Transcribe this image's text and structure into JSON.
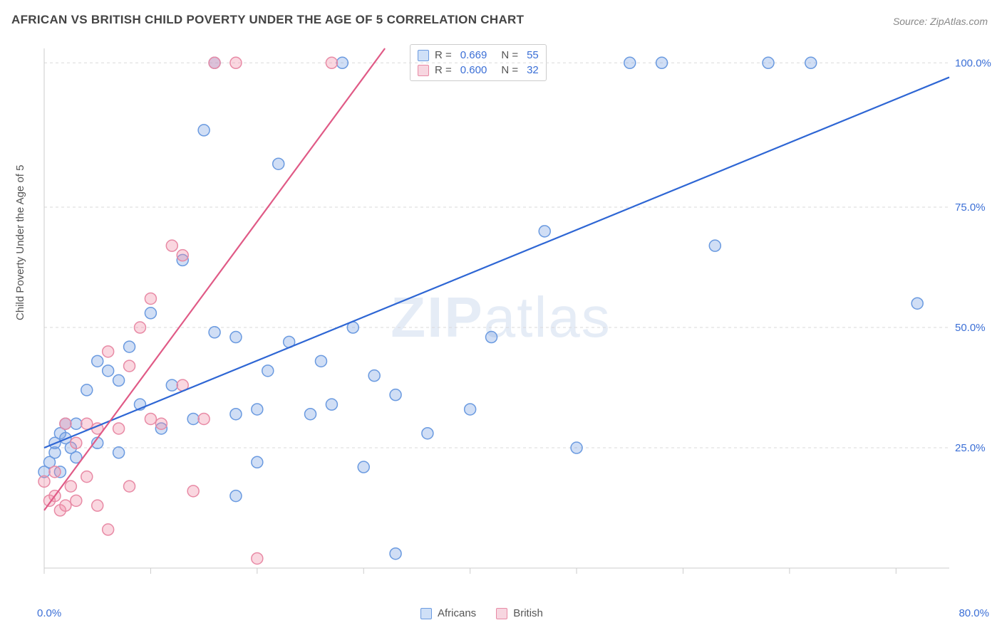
{
  "title": "AFRICAN VS BRITISH CHILD POVERTY UNDER THE AGE OF 5 CORRELATION CHART",
  "source": {
    "label": "Source: ",
    "name": "ZipAtlas.com"
  },
  "watermark": {
    "bold": "ZIP",
    "light": "atlas"
  },
  "chart": {
    "type": "scatter",
    "ylabel": "Child Poverty Under the Age of 5",
    "xlabel_min": "0.0%",
    "xlabel_max": "80.0%",
    "xlim": [
      0,
      85
    ],
    "ylim": [
      0,
      108
    ],
    "x_ticks": [
      0,
      10,
      20,
      30,
      40,
      50,
      60,
      70,
      80
    ],
    "y_gridlines": [
      25,
      50,
      75,
      105
    ],
    "y_tick_labels": [
      "25.0%",
      "50.0%",
      "75.0%",
      "100.0%"
    ],
    "background_color": "#ffffff",
    "grid_color": "#d9d9d9",
    "grid_dash": "4,4",
    "axis_color": "#cccccc",
    "marker_radius": 8,
    "marker_stroke_width": 1.5,
    "line_width": 2.2,
    "tick_label_color": "#3b6fd6",
    "tick_label_fontsize": 15,
    "series": [
      {
        "name": "Africans",
        "fill": "rgba(120,160,225,0.35)",
        "stroke": "#6a9ae0",
        "swatch_fill": "#cfe0f7",
        "swatch_border": "#6a9ae0",
        "r": "0.669",
        "n": "55",
        "trend": {
          "x1": 0,
          "y1": 25,
          "x2": 85,
          "y2": 102,
          "color": "#2e66d4"
        },
        "points": [
          [
            0,
            20
          ],
          [
            0.5,
            22
          ],
          [
            1,
            24
          ],
          [
            1,
            26
          ],
          [
            1.5,
            20
          ],
          [
            1.5,
            28
          ],
          [
            2,
            27
          ],
          [
            2,
            30
          ],
          [
            2.5,
            25
          ],
          [
            3,
            30
          ],
          [
            3,
            23
          ],
          [
            4,
            37
          ],
          [
            5,
            26
          ],
          [
            5,
            43
          ],
          [
            6,
            41
          ],
          [
            7,
            24
          ],
          [
            7,
            39
          ],
          [
            8,
            46
          ],
          [
            9,
            34
          ],
          [
            10,
            53
          ],
          [
            11,
            29
          ],
          [
            12,
            38
          ],
          [
            13,
            64
          ],
          [
            14,
            31
          ],
          [
            15,
            91
          ],
          [
            16,
            49
          ],
          [
            16,
            105
          ],
          [
            18,
            32
          ],
          [
            18,
            15
          ],
          [
            18,
            48
          ],
          [
            20,
            33
          ],
          [
            20,
            22
          ],
          [
            21,
            41
          ],
          [
            22,
            84
          ],
          [
            23,
            47
          ],
          [
            25,
            32
          ],
          [
            26,
            43
          ],
          [
            27,
            34
          ],
          [
            28,
            105
          ],
          [
            29,
            50
          ],
          [
            30,
            21
          ],
          [
            31,
            40
          ],
          [
            33,
            36
          ],
          [
            33,
            3
          ],
          [
            36,
            28
          ],
          [
            40,
            33
          ],
          [
            42,
            48
          ],
          [
            47,
            70
          ],
          [
            50,
            25
          ],
          [
            55,
            105
          ],
          [
            58,
            105
          ],
          [
            63,
            67
          ],
          [
            68,
            105
          ],
          [
            72,
            105
          ],
          [
            82,
            55
          ]
        ]
      },
      {
        "name": "British",
        "fill": "rgba(240,140,165,0.35)",
        "stroke": "#e88aa5",
        "swatch_fill": "#f7d6e0",
        "swatch_border": "#e88aa5",
        "r": "0.600",
        "n": "32",
        "trend": {
          "x1": 0,
          "y1": 12,
          "x2": 32,
          "y2": 108,
          "color": "#e05a86"
        },
        "points": [
          [
            0,
            18
          ],
          [
            0.5,
            14
          ],
          [
            1,
            15
          ],
          [
            1,
            20
          ],
          [
            1.5,
            12
          ],
          [
            2,
            13
          ],
          [
            2,
            30
          ],
          [
            2.5,
            17
          ],
          [
            3,
            26
          ],
          [
            3,
            14
          ],
          [
            4,
            19
          ],
          [
            4,
            30
          ],
          [
            5,
            13
          ],
          [
            5,
            29
          ],
          [
            6,
            45
          ],
          [
            6,
            8
          ],
          [
            7,
            29
          ],
          [
            8,
            42
          ],
          [
            8,
            17
          ],
          [
            9,
            50
          ],
          [
            10,
            31
          ],
          [
            10,
            56
          ],
          [
            11,
            30
          ],
          [
            12,
            67
          ],
          [
            13,
            38
          ],
          [
            13,
            65
          ],
          [
            14,
            16
          ],
          [
            15,
            31
          ],
          [
            16,
            105
          ],
          [
            18,
            105
          ],
          [
            20,
            2
          ],
          [
            27,
            105
          ]
        ]
      }
    ]
  }
}
